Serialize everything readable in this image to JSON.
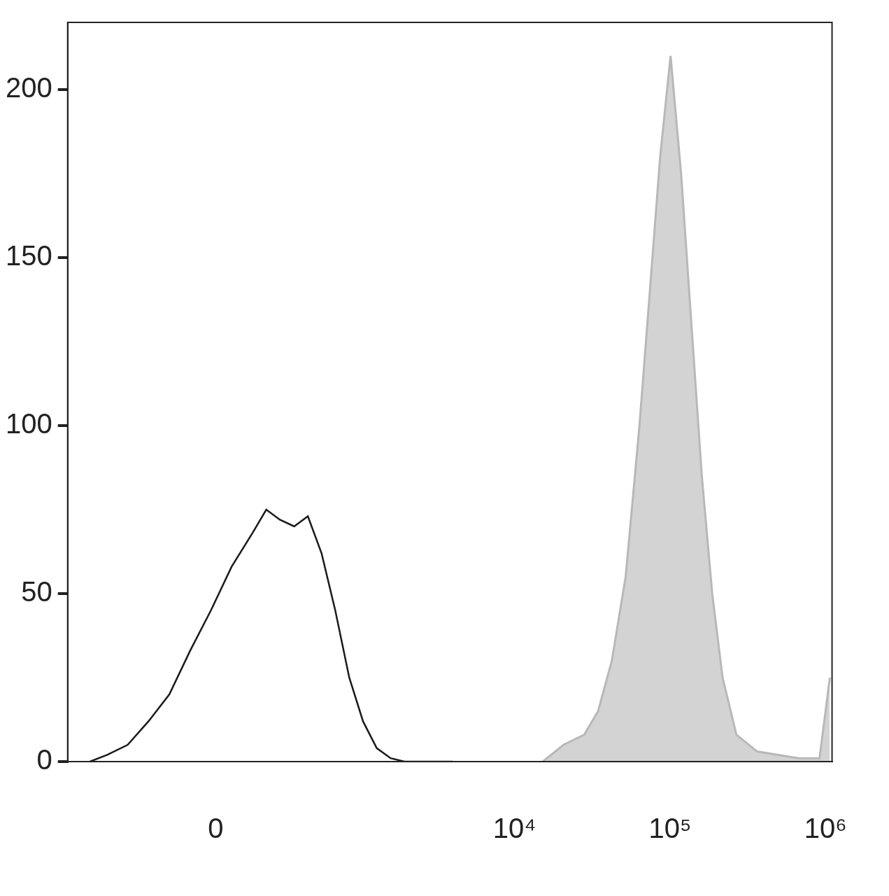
{
  "chart_data": {
    "type": "line",
    "xlim": [
      -1060,
      1100000
    ],
    "xticks": [
      {
        "value": 0,
        "label": "0"
      },
      {
        "value": 10000,
        "label": "10⁴"
      },
      {
        "value": 100000,
        "label": "10⁵"
      },
      {
        "value": 1000000,
        "label": "10⁶"
      }
    ],
    "ylim": [
      0,
      220
    ],
    "yticks": [
      0,
      50,
      100,
      150,
      200
    ],
    "grid": false,
    "series": [
      {
        "type": "line",
        "color": "#1a1a1a",
        "x": [
          -754,
          -574,
          -409,
          -280,
          -178,
          -93,
          -17,
          57,
          137,
          197,
          264,
          346,
          439,
          550,
          684,
          850,
          1049,
          1291,
          1591,
          1956,
          4008
        ],
        "values": [
          0,
          2,
          5,
          12,
          20,
          33,
          45,
          58,
          68,
          75,
          72,
          70,
          73,
          62,
          45,
          25,
          12,
          4,
          1,
          0,
          0
        ]
      },
      {
        "type": "area",
        "color": "#b8b8b8",
        "x": [
          15190,
          20664,
          28080,
          34460,
          42240,
          51840,
          63600,
          74160,
          86400,
          100800,
          117800,
          137300,
          160100,
          186700,
          217700,
          267100,
          363100,
          672000,
          914000,
          1065000
        ],
        "values": [
          0,
          5,
          8,
          15,
          30,
          55,
          100,
          140,
          180,
          210,
          175,
          130,
          85,
          50,
          25,
          8,
          3,
          1,
          1,
          25
        ]
      }
    ]
  }
}
